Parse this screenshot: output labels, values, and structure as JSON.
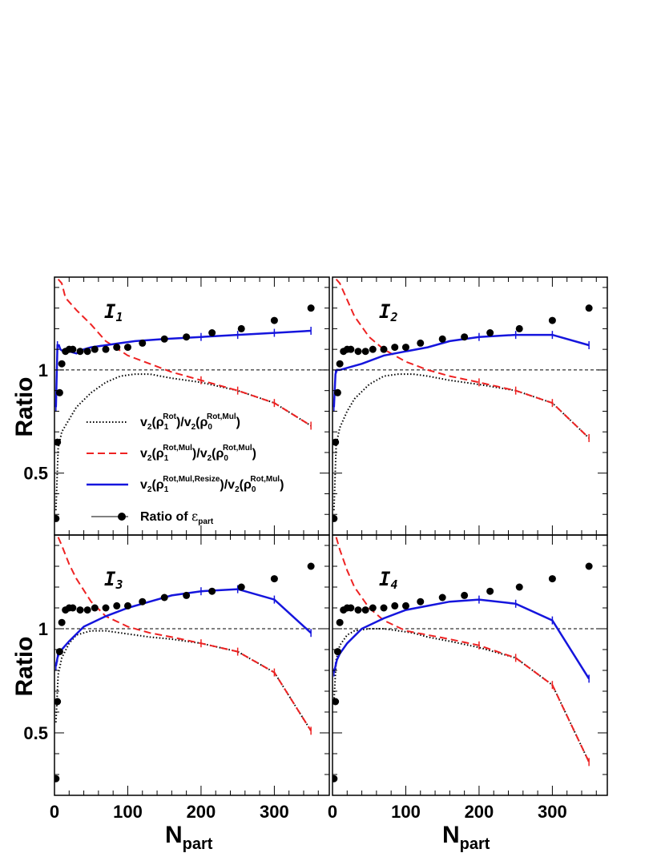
{
  "figure": {
    "ylabel": "Ratio",
    "xlabel_main": "N",
    "xlabel_sub": "part",
    "colors": {
      "dotted": "#000000",
      "dashed": "#ee2222",
      "solid": "#1515dd",
      "points": "#000000",
      "reference": "#000000"
    }
  },
  "legend": {
    "items": [
      {
        "style": "dotted",
        "text": "v2(ρ1^Rot)/v2(ρ0^Rot,Mul)",
        "num_sub": "2",
        "num_rho_sub": "1",
        "num_sup": "Rot",
        "den_sub": "2",
        "den_rho_sub": "0",
        "den_sup": "Rot,Mul"
      },
      {
        "style": "dashed",
        "text": "v2(ρ1^Rot,Mul)/v2(ρ0^Rot,Mul)",
        "num_sub": "2",
        "num_rho_sub": "1",
        "num_sup": "Rot,Mul",
        "den_sub": "2",
        "den_rho_sub": "0",
        "den_sup": "Rot,Mul"
      },
      {
        "style": "solid",
        "text": "v2(ρ1^Rot,Mul,Resize)/v2(ρ0^Rot,Mul)",
        "num_sub": "2",
        "num_rho_sub": "1",
        "num_sup": "Rot,Mul,Resize",
        "den_sub": "2",
        "den_rho_sub": "0",
        "den_sup": "Rot,Mul"
      },
      {
        "style": "points",
        "text": "Ratio of εpart",
        "main": "Ratio of ",
        "symbol": "ε",
        "sub": "part"
      }
    ]
  },
  "chart_data": [
    {
      "type": "line",
      "panel_label": "I",
      "panel_label_sub": "1",
      "xlim": [
        0,
        375
      ],
      "ylim": [
        0.2,
        1.45
      ],
      "xticks": [
        0,
        100,
        200,
        300
      ],
      "yticks": [
        0.5,
        1
      ],
      "reference_line": 1,
      "series": [
        {
          "name": "v2(ρ1^Rot)/v2(ρ0^Rot,Mul)",
          "style": "dotted",
          "x": [
            2,
            5,
            10,
            20,
            30,
            50,
            70,
            90,
            110,
            130,
            160,
            200,
            250,
            300,
            350
          ],
          "y": [
            0.32,
            0.62,
            0.7,
            0.76,
            0.82,
            0.89,
            0.94,
            0.97,
            0.98,
            0.98,
            0.96,
            0.94,
            0.9,
            0.84,
            0.73
          ]
        },
        {
          "name": "v2(ρ1^Rot,Mul)/v2(ρ0^Rot,Mul)",
          "style": "dashed",
          "x": [
            5,
            10,
            15,
            20,
            30,
            50,
            70,
            100,
            130,
            160,
            200,
            250,
            300,
            350
          ],
          "y": [
            1.44,
            1.42,
            1.35,
            1.33,
            1.29,
            1.22,
            1.14,
            1.07,
            1.03,
            0.99,
            0.95,
            0.9,
            0.84,
            0.73
          ]
        },
        {
          "name": "v2(ρ1^Rot,Mul,Resize)/v2(ρ0^Rot,Mul)",
          "style": "solid",
          "x": [
            2,
            4,
            6,
            8,
            12,
            20,
            30,
            40,
            50,
            70,
            90,
            110,
            150,
            200,
            250,
            300,
            350
          ],
          "y": [
            0.82,
            1.12,
            1.12,
            1.1,
            1.09,
            1.09,
            1.08,
            1.1,
            1.11,
            1.12,
            1.13,
            1.14,
            1.15,
            1.16,
            1.17,
            1.18,
            1.19
          ]
        }
      ],
      "points": {
        "x": [
          2,
          4,
          7,
          10,
          15,
          20,
          25,
          35,
          45,
          55,
          70,
          85,
          100,
          120,
          150,
          180,
          215,
          255,
          300,
          350
        ],
        "y": [
          0.28,
          0.65,
          0.89,
          1.03,
          1.09,
          1.1,
          1.1,
          1.09,
          1.09,
          1.1,
          1.1,
          1.11,
          1.11,
          1.13,
          1.15,
          1.16,
          1.18,
          1.2,
          1.24,
          1.3
        ]
      }
    },
    {
      "type": "line",
      "panel_label": "I",
      "panel_label_sub": "2",
      "xlim": [
        0,
        375
      ],
      "ylim": [
        0.2,
        1.45
      ],
      "xticks": [
        0,
        100,
        200,
        300
      ],
      "yticks": [
        0.5,
        1
      ],
      "reference_line": 1,
      "series": [
        {
          "name": "v2(ρ1^Rot)/v2(ρ0^Rot,Mul)",
          "style": "dotted",
          "x": [
            2,
            5,
            10,
            20,
            30,
            50,
            70,
            90,
            110,
            130,
            160,
            200,
            250,
            300,
            350
          ],
          "y": [
            0.32,
            0.64,
            0.72,
            0.8,
            0.86,
            0.93,
            0.97,
            0.98,
            0.98,
            0.97,
            0.95,
            0.93,
            0.9,
            0.84,
            0.67
          ]
        },
        {
          "name": "v2(ρ1^Rot,Mul)/v2(ρ0^Rot,Mul)",
          "style": "dashed",
          "x": [
            5,
            10,
            20,
            30,
            50,
            70,
            100,
            130,
            160,
            200,
            250,
            300,
            350
          ],
          "y": [
            1.44,
            1.42,
            1.34,
            1.26,
            1.16,
            1.1,
            1.04,
            1.0,
            0.97,
            0.94,
            0.9,
            0.84,
            0.67
          ]
        },
        {
          "name": "v2(ρ1^Rot,Mul,Resize)/v2(ρ0^Rot,Mul)",
          "style": "solid",
          "x": [
            2,
            4,
            6,
            10,
            20,
            40,
            70,
            100,
            130,
            160,
            200,
            250,
            300,
            350
          ],
          "y": [
            0.82,
            0.98,
            1.0,
            1.0,
            1.01,
            1.03,
            1.07,
            1.09,
            1.11,
            1.14,
            1.16,
            1.17,
            1.17,
            1.12
          ]
        }
      ],
      "points": {
        "x": [
          2,
          4,
          7,
          10,
          15,
          20,
          25,
          35,
          45,
          55,
          70,
          85,
          100,
          120,
          150,
          180,
          215,
          255,
          300,
          350
        ],
        "y": [
          0.28,
          0.65,
          0.89,
          1.03,
          1.09,
          1.1,
          1.1,
          1.09,
          1.09,
          1.1,
          1.1,
          1.11,
          1.11,
          1.13,
          1.15,
          1.16,
          1.18,
          1.2,
          1.24,
          1.3
        ]
      }
    },
    {
      "type": "line",
      "panel_label": "I",
      "panel_label_sub": "3",
      "xlim": [
        0,
        375
      ],
      "ylim": [
        0.2,
        1.45
      ],
      "xticks": [
        0,
        100,
        200,
        300
      ],
      "yticks": [
        0.5,
        1
      ],
      "reference_line": 1,
      "series": [
        {
          "name": "v2(ρ1^Rot)/v2(ρ0^Rot,Mul)",
          "style": "dotted",
          "x": [
            2,
            5,
            10,
            20,
            30,
            50,
            70,
            90,
            110,
            130,
            160,
            200,
            250,
            300,
            350
          ],
          "y": [
            0.55,
            0.78,
            0.86,
            0.93,
            0.97,
            0.99,
            0.99,
            0.98,
            0.97,
            0.96,
            0.95,
            0.93,
            0.89,
            0.79,
            0.51
          ]
        },
        {
          "name": "v2(ρ1^Rot,Mul)/v2(ρ0^Rot,Mul)",
          "style": "dashed",
          "x": [
            5,
            10,
            20,
            30,
            50,
            70,
            100,
            130,
            160,
            200,
            250,
            300,
            350
          ],
          "y": [
            1.44,
            1.4,
            1.31,
            1.24,
            1.13,
            1.06,
            1.01,
            0.98,
            0.96,
            0.93,
            0.89,
            0.79,
            0.51
          ]
        },
        {
          "name": "v2(ρ1^Rot,Mul,Resize)/v2(ρ0^Rot,Mul)",
          "style": "solid",
          "x": [
            2,
            4,
            6,
            10,
            20,
            40,
            70,
            100,
            130,
            160,
            200,
            250,
            300,
            350
          ],
          "y": [
            0.82,
            0.86,
            0.88,
            0.9,
            0.94,
            1.01,
            1.06,
            1.1,
            1.13,
            1.16,
            1.18,
            1.19,
            1.14,
            0.98
          ]
        }
      ],
      "points": {
        "x": [
          2,
          4,
          7,
          10,
          15,
          20,
          25,
          35,
          45,
          55,
          70,
          85,
          100,
          120,
          150,
          180,
          215,
          255,
          300,
          350
        ],
        "y": [
          0.28,
          0.65,
          0.89,
          1.03,
          1.09,
          1.1,
          1.1,
          1.09,
          1.09,
          1.1,
          1.1,
          1.11,
          1.11,
          1.13,
          1.15,
          1.16,
          1.18,
          1.2,
          1.24,
          1.3
        ]
      }
    },
    {
      "type": "line",
      "panel_label": "I",
      "panel_label_sub": "4",
      "xlim": [
        0,
        375
      ],
      "ylim": [
        0.2,
        1.45
      ],
      "xticks": [
        0,
        100,
        200,
        300
      ],
      "yticks": [
        0.5,
        1
      ],
      "reference_line": 1,
      "series": [
        {
          "name": "v2(ρ1^Rot)/v2(ρ0^Rot,Mul)",
          "style": "dotted",
          "x": [
            2,
            5,
            10,
            20,
            30,
            50,
            70,
            90,
            110,
            130,
            160,
            200,
            250,
            300,
            350
          ],
          "y": [
            0.65,
            0.85,
            0.92,
            0.97,
            0.99,
            1.0,
            1.0,
            0.99,
            0.98,
            0.96,
            0.94,
            0.91,
            0.86,
            0.73,
            0.36
          ]
        },
        {
          "name": "v2(ρ1^Rot,Mul)/v2(ρ0^Rot,Mul)",
          "style": "dashed",
          "x": [
            5,
            10,
            20,
            30,
            50,
            70,
            100,
            130,
            160,
            200,
            250,
            300,
            350
          ],
          "y": [
            1.44,
            1.38,
            1.28,
            1.2,
            1.1,
            1.04,
            0.99,
            0.97,
            0.95,
            0.92,
            0.86,
            0.73,
            0.36
          ]
        },
        {
          "name": "v2(ρ1^Rot,Mul,Resize)/v2(ρ0^Rot,Mul)",
          "style": "solid",
          "x": [
            2,
            4,
            6,
            10,
            20,
            40,
            70,
            100,
            130,
            160,
            200,
            250,
            300,
            350
          ],
          "y": [
            0.79,
            0.82,
            0.85,
            0.88,
            0.93,
            1.0,
            1.05,
            1.09,
            1.11,
            1.13,
            1.14,
            1.12,
            1.04,
            0.76
          ]
        }
      ],
      "points": {
        "x": [
          2,
          4,
          7,
          10,
          15,
          20,
          25,
          35,
          45,
          55,
          70,
          85,
          100,
          120,
          150,
          180,
          215,
          255,
          300,
          350
        ],
        "y": [
          0.28,
          0.65,
          0.89,
          1.03,
          1.09,
          1.1,
          1.1,
          1.09,
          1.09,
          1.1,
          1.1,
          1.11,
          1.11,
          1.13,
          1.15,
          1.16,
          1.18,
          1.2,
          1.24,
          1.3
        ]
      }
    }
  ]
}
